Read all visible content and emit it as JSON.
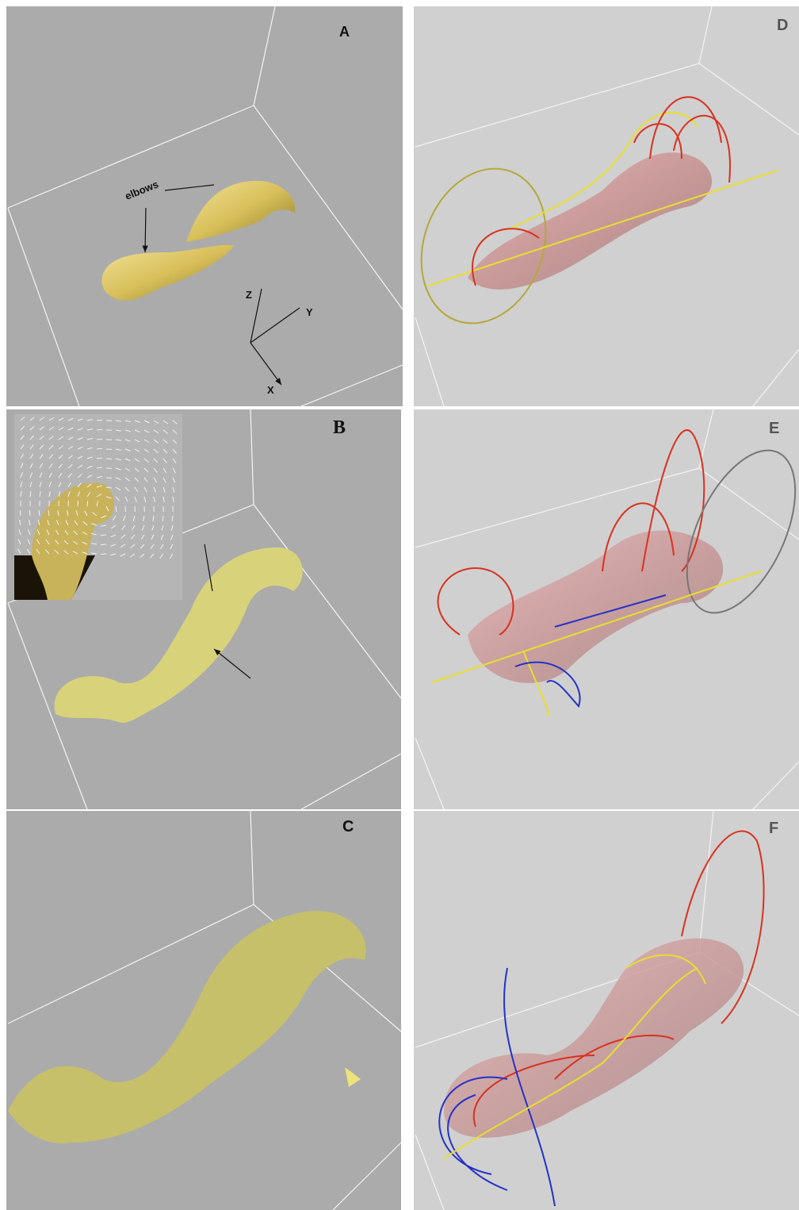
{
  "panels": [
    {
      "label": "A",
      "annotation": "elbows",
      "axes": {
        "z": "Z",
        "y": "Y",
        "x": "X"
      }
    },
    {
      "label": "B"
    },
    {
      "label": "C"
    },
    {
      "label": "D"
    },
    {
      "label": "E"
    },
    {
      "label": "F"
    }
  ]
}
